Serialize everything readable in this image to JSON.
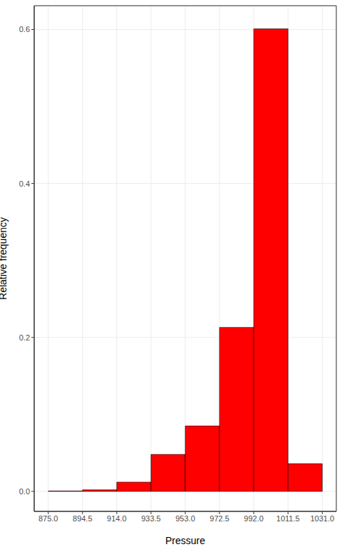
{
  "chart_data": {
    "type": "histogram",
    "bins": [
      875,
      894.5,
      914,
      933.5,
      953,
      972.5,
      992,
      1011.5,
      1031
    ],
    "values": [
      0.0005,
      0.002,
      0.012,
      0.048,
      0.085,
      0.213,
      0.601,
      0.036
    ],
    "color": "#ff0000",
    "xlabel": "Pressure",
    "ylabel": "Relative frequency",
    "xlim": [
      867,
      1039
    ],
    "ylim": [
      -0.026,
      0.631
    ],
    "xticks": [
      {
        "value": 875,
        "label": "875.0"
      },
      {
        "value": 894.5,
        "label": "894.5"
      },
      {
        "value": 914,
        "label": "914.0"
      },
      {
        "value": 933.5,
        "label": "933.5"
      },
      {
        "value": 953,
        "label": "953.0"
      },
      {
        "value": 972.5,
        "label": "972.5"
      },
      {
        "value": 992,
        "label": "992.0"
      },
      {
        "value": 1011.5,
        "label": "1011.5"
      },
      {
        "value": 1031,
        "label": "1031.0"
      }
    ],
    "yticks": [
      {
        "value": 0,
        "label": "0.0"
      },
      0.2,
      0.4,
      0.6
    ],
    "grid": true
  }
}
